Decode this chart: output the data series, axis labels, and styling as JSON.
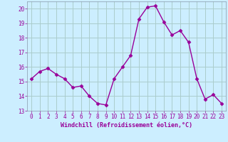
{
  "x": [
    0,
    1,
    2,
    3,
    4,
    5,
    6,
    7,
    8,
    9,
    10,
    11,
    12,
    13,
    14,
    15,
    16,
    17,
    18,
    19,
    20,
    21,
    22,
    23
  ],
  "y": [
    15.2,
    15.7,
    15.9,
    15.5,
    15.2,
    14.6,
    14.7,
    14.0,
    13.5,
    13.4,
    15.2,
    16.0,
    16.8,
    19.3,
    20.1,
    20.2,
    19.1,
    18.2,
    18.5,
    17.7,
    15.2,
    13.8,
    14.1,
    13.5
  ],
  "line_color": "#990099",
  "marker": "D",
  "marker_size": 2.5,
  "background_color": "#cceeff",
  "grid_color": "#aacccc",
  "xlabel": "Windchill (Refroidissement éolien,°C)",
  "xlabel_color": "#990099",
  "tick_color": "#990099",
  "ylim": [
    13,
    20.5
  ],
  "yticks": [
    13,
    14,
    15,
    16,
    17,
    18,
    19,
    20
  ],
  "xticks": [
    0,
    1,
    2,
    3,
    4,
    5,
    6,
    7,
    8,
    9,
    10,
    11,
    12,
    13,
    14,
    15,
    16,
    17,
    18,
    19,
    20,
    21,
    22,
    23
  ],
  "line_width": 1.0,
  "spine_color": "#8899aa"
}
